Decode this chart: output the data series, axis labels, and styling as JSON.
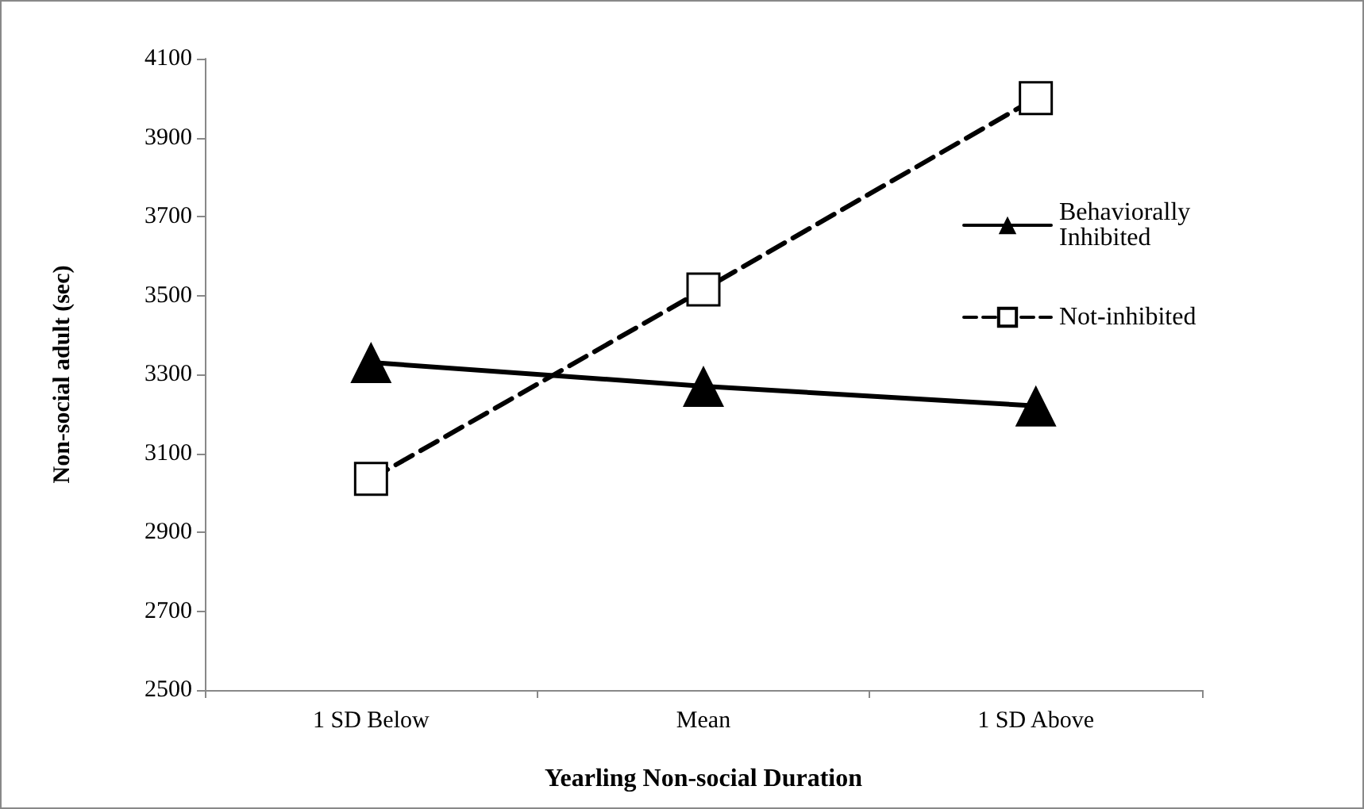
{
  "chart_data": {
    "type": "line",
    "xlabel": "Yearling Non-social Duration",
    "ylabel": "Non-social adult (sec)",
    "categories": [
      "1 SD Below",
      "Mean",
      "1 SD Above"
    ],
    "series": [
      {
        "name": "Behaviorally Inhibited",
        "color": "#000000",
        "values": [
          3330,
          3270,
          3220
        ],
        "marker": "triangle",
        "line_style": "solid"
      },
      {
        "name": "Not-inhibited",
        "color": "#000000",
        "values": [
          3035,
          3515,
          4000
        ],
        "marker": "square",
        "line_style": "dashed"
      }
    ],
    "ylim": [
      2500,
      4100
    ],
    "yticks": [
      2500,
      2700,
      2900,
      3100,
      3300,
      3500,
      3700,
      3900,
      4100
    ],
    "grid": false,
    "legend": "right"
  }
}
